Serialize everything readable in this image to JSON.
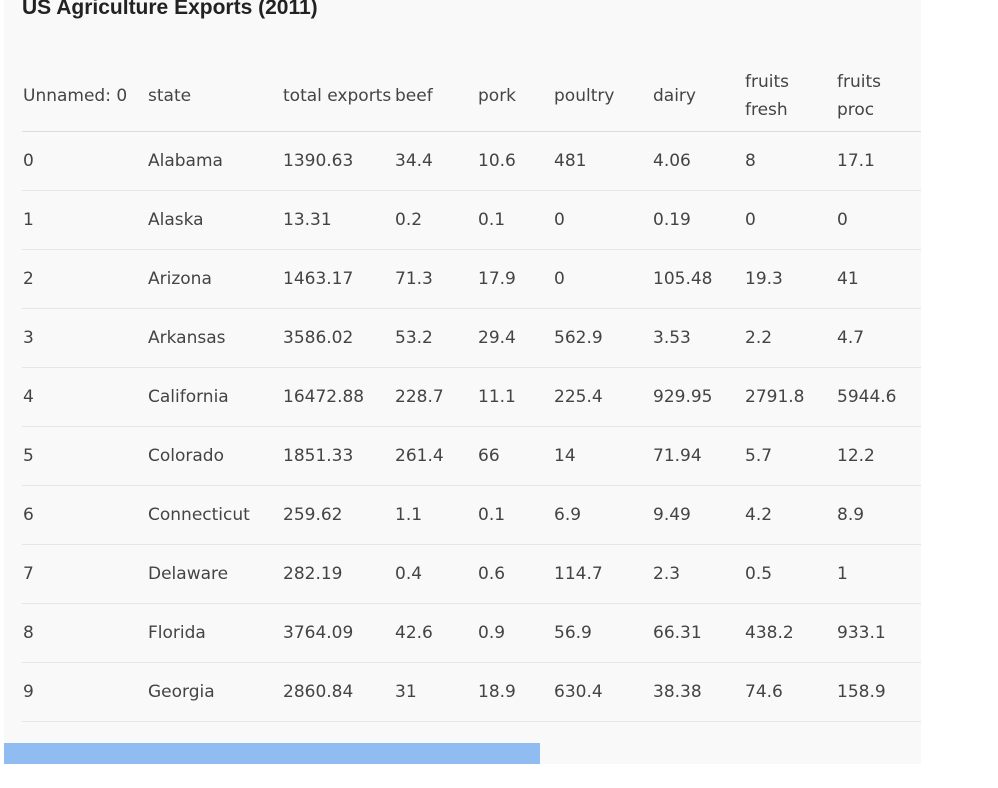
{
  "title": "US Agriculture Exports (2011)",
  "columns": [
    "Unnamed: 0",
    "state",
    "total exports",
    "beef",
    "pork",
    "poultry",
    "dairy",
    "fruits fresh",
    "fruits proc"
  ],
  "rows": [
    [
      "0",
      "Alabama",
      "1390.63",
      "34.4",
      "10.6",
      "481",
      "4.06",
      "8",
      "17.1"
    ],
    [
      "1",
      "Alaska",
      "13.31",
      "0.2",
      "0.1",
      "0",
      "0.19",
      "0",
      "0"
    ],
    [
      "2",
      "Arizona",
      "1463.17",
      "71.3",
      "17.9",
      "0",
      "105.48",
      "19.3",
      "41"
    ],
    [
      "3",
      "Arkansas",
      "3586.02",
      "53.2",
      "29.4",
      "562.9",
      "3.53",
      "2.2",
      "4.7"
    ],
    [
      "4",
      "California",
      "16472.88",
      "228.7",
      "11.1",
      "225.4",
      "929.95",
      "2791.8",
      "5944.6"
    ],
    [
      "5",
      "Colorado",
      "1851.33",
      "261.4",
      "66",
      "14",
      "71.94",
      "5.7",
      "12.2"
    ],
    [
      "6",
      "Connecticut",
      "259.62",
      "1.1",
      "0.1",
      "6.9",
      "9.49",
      "4.2",
      "8.9"
    ],
    [
      "7",
      "Delaware",
      "282.19",
      "0.4",
      "0.6",
      "114.7",
      "2.3",
      "0.5",
      "1"
    ],
    [
      "8",
      "Florida",
      "3764.09",
      "42.6",
      "0.9",
      "56.9",
      "66.31",
      "438.2",
      "933.1"
    ],
    [
      "9",
      "Georgia",
      "2860.84",
      "31",
      "18.9",
      "630.4",
      "38.38",
      "74.6",
      "158.9"
    ]
  ],
  "scrollbar": {
    "position": 0,
    "visible_fraction": 0.585
  },
  "colors": {
    "panel_bg": "#f9f9f9",
    "text": "#444444",
    "title": "#222222",
    "scroll_thumb": "#90bcf2",
    "row_border": "#e6e6e6"
  }
}
